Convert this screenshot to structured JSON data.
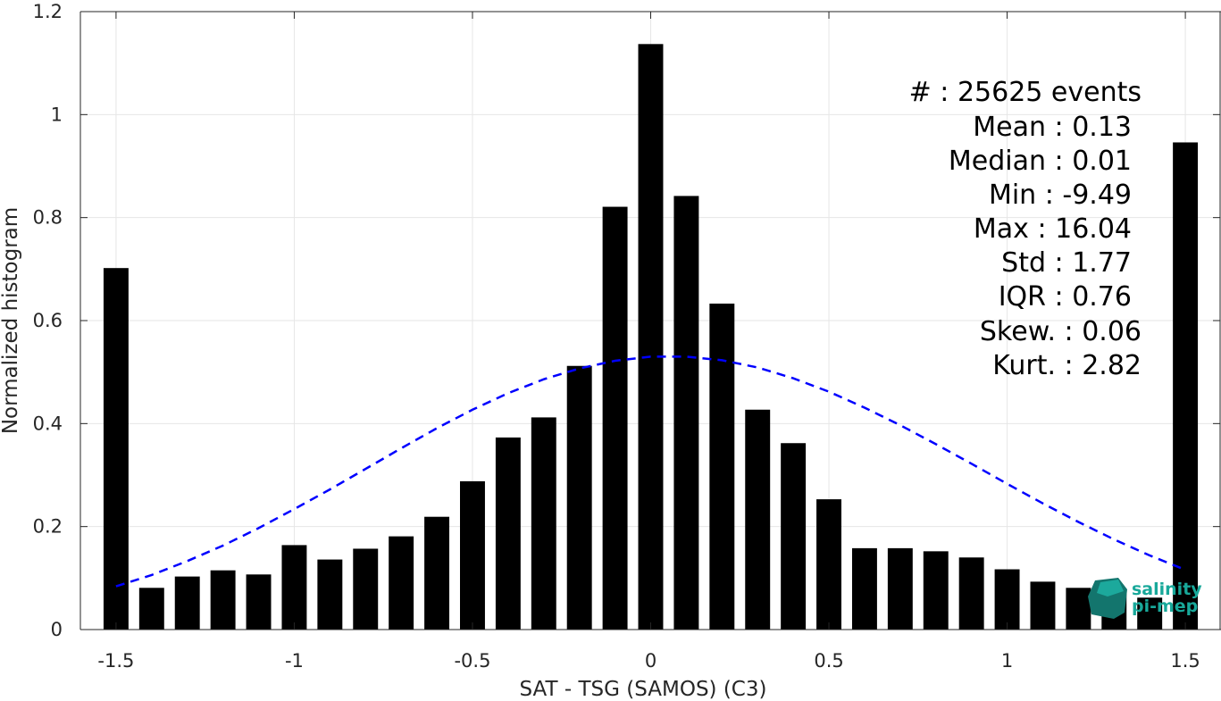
{
  "chart_data": {
    "type": "bar",
    "xlabel": "SAT - TSG (SAMOS) (C3)",
    "ylabel": "Normalized histogram",
    "xlim": [
      -1.6,
      1.6
    ],
    "ylim": [
      0,
      1.2
    ],
    "grid": true,
    "x_ticks": [
      -1.5,
      -1,
      -0.5,
      0,
      0.5,
      1,
      1.5
    ],
    "x_tick_labels": [
      "-1.5",
      "-1",
      "-0.5",
      "0",
      "0.5",
      "1",
      "1.5"
    ],
    "y_ticks": [
      0,
      0.2,
      0.4,
      0.6,
      0.8,
      1,
      1.2
    ],
    "y_tick_labels": [
      "0",
      "0.2",
      "0.4",
      "0.6",
      "0.8",
      "1",
      "1.2"
    ],
    "bar_width": 0.07,
    "series": [
      {
        "type": "bar",
        "color": "#000000",
        "x": [
          -1.5,
          -1.4,
          -1.3,
          -1.2,
          -1.1,
          -1.0,
          -0.9,
          -0.8,
          -0.7,
          -0.6,
          -0.5,
          -0.4,
          -0.3,
          -0.2,
          -0.1,
          0.0,
          0.1,
          0.2,
          0.3,
          0.4,
          0.5,
          0.6,
          0.7,
          0.8,
          0.9,
          1.0,
          1.1,
          1.2,
          1.3,
          1.4,
          1.5
        ],
        "values": [
          0.702,
          0.081,
          0.103,
          0.115,
          0.107,
          0.164,
          0.136,
          0.157,
          0.181,
          0.219,
          0.288,
          0.373,
          0.412,
          0.512,
          0.821,
          1.137,
          0.842,
          0.633,
          0.427,
          0.362,
          0.253,
          0.158,
          0.158,
          0.152,
          0.14,
          0.117,
          0.093,
          0.081,
          0.078,
          0.062,
          0.946
        ]
      },
      {
        "type": "line",
        "style": "dashed",
        "color": "#0000ff",
        "x": [
          -1.5,
          -1.4,
          -1.3,
          -1.2,
          -1.1,
          -1.0,
          -0.9,
          -0.8,
          -0.7,
          -0.6,
          -0.5,
          -0.4,
          -0.3,
          -0.2,
          -0.1,
          0.0,
          0.1,
          0.2,
          0.3,
          0.4,
          0.5,
          0.6,
          0.7,
          0.8,
          0.9,
          1.0,
          1.1,
          1.2,
          1.3,
          1.4,
          1.5
        ],
        "values": [
          0.084,
          0.106,
          0.133,
          0.163,
          0.197,
          0.234,
          0.272,
          0.312,
          0.352,
          0.391,
          0.427,
          0.459,
          0.486,
          0.507,
          0.522,
          0.53,
          0.53,
          0.523,
          0.509,
          0.488,
          0.462,
          0.431,
          0.397,
          0.36,
          0.322,
          0.283,
          0.245,
          0.209,
          0.175,
          0.144,
          0.116
        ]
      }
    ],
    "annotation_lines": [
      "#  : 25625 events",
      "Mean : 0.13",
      "Median : 0.01",
      "Min : -9.49",
      "Max : 16.04",
      "Std : 1.77",
      "IQR : 0.76",
      "Skew. : 0.06",
      "Kurt. : 2.82"
    ],
    "logo": {
      "line1": "salinity",
      "line2": "pi-mep",
      "color": "#18a89a"
    }
  }
}
